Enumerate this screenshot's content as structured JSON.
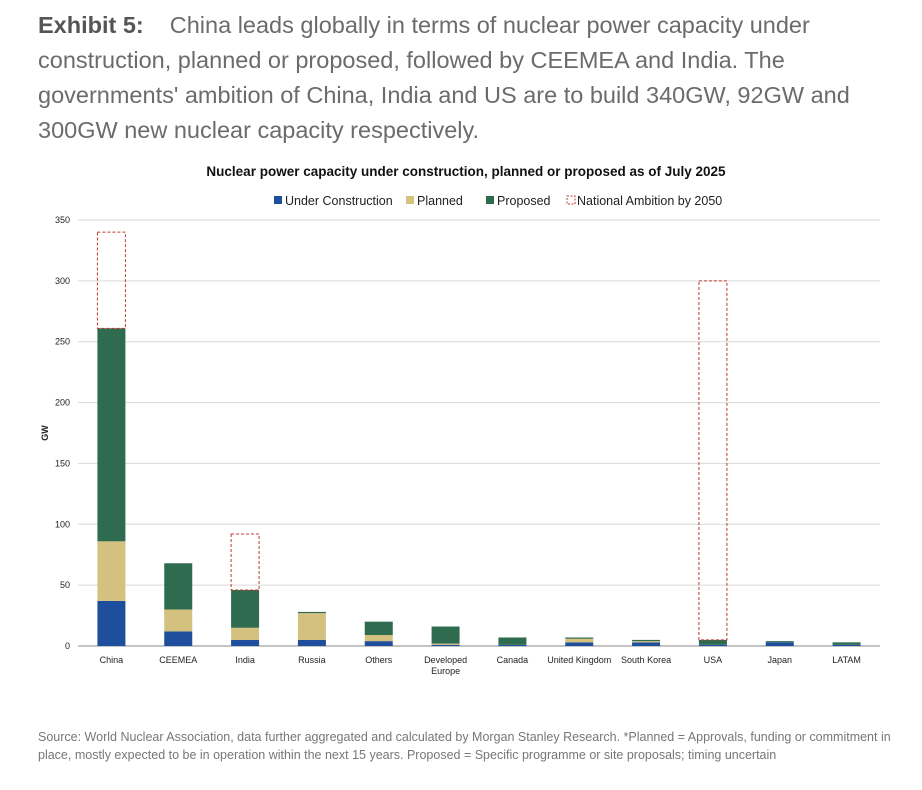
{
  "exhibit": {
    "label": "Exhibit 5:",
    "text": "China leads globally in terms of nuclear power capacity under construction, planned or proposed, followed by CEEMEA and India. The governments' ambition of China, India and US are to build 340GW, 92GW and 300GW new nuclear capacity respectively."
  },
  "chart_data": {
    "type": "bar",
    "stacked": true,
    "title": "Nuclear power capacity under construction, planned or proposed as of July 2025",
    "xlabel": "",
    "ylabel": "GW",
    "ylim": [
      0,
      350
    ],
    "yticks": [
      0,
      50,
      100,
      150,
      200,
      250,
      300,
      350
    ],
    "grid": true,
    "legend_position": "top-center",
    "categories": [
      [
        "China"
      ],
      [
        "CEEMEA"
      ],
      [
        "India"
      ],
      [
        "Russia"
      ],
      [
        "Others"
      ],
      [
        "Developed",
        "Europe"
      ],
      [
        "Canada"
      ],
      [
        "United Kingdom"
      ],
      [
        "South Korea"
      ],
      [
        "USA"
      ],
      [
        "Japan"
      ],
      [
        "LATAM"
      ]
    ],
    "series": [
      {
        "name": "Under Construction",
        "color": "#1f4e9c",
        "values": [
          37,
          12,
          5,
          5,
          4,
          1,
          1,
          3,
          3,
          1,
          3,
          1
        ]
      },
      {
        "name": "Planned",
        "color": "#d4c17f",
        "values": [
          49,
          18,
          10,
          22,
          5,
          1,
          0,
          3,
          1,
          0,
          0,
          0
        ]
      },
      {
        "name": "Proposed",
        "color": "#2f6b4f",
        "values": [
          175,
          38,
          31,
          1,
          11,
          14,
          6,
          1,
          1,
          4,
          1,
          2
        ]
      }
    ],
    "ambition": {
      "name": "National Ambition by 2050",
      "color": "#c0392b",
      "values": [
        340,
        null,
        92,
        null,
        null,
        null,
        null,
        null,
        null,
        300,
        null,
        null
      ]
    }
  },
  "source": "Source: World Nuclear Association, data further aggregated and calculated by Morgan Stanley Research. *Planned = Approvals, funding or commitment in place, mostly expected to be in operation within the next 15 years. Proposed = Specific programme or site proposals; timing uncertain"
}
